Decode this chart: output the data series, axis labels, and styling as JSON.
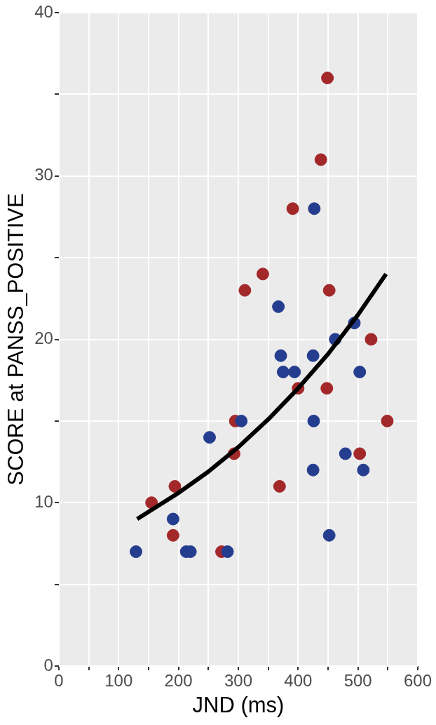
{
  "chart_data": {
    "type": "scatter",
    "xlabel": "JND (ms)",
    "ylabel": "SCORE at PANSS_POSITIVE",
    "xlim": [
      0,
      600
    ],
    "ylim": [
      0,
      40
    ],
    "xticks": [
      0,
      {
        "value": 50,
        "label": null
      },
      100,
      {
        "value": 150,
        "label": null
      },
      200,
      {
        "value": 250,
        "label": null
      },
      300,
      {
        "value": 350,
        "label": null
      },
      400,
      {
        "value": 450,
        "label": null
      },
      500,
      {
        "value": 550,
        "label": null
      },
      600
    ],
    "yticks": [
      0,
      {
        "value": 5,
        "label": null
      },
      10,
      {
        "value": 15,
        "label": null
      },
      20,
      {
        "value": 25,
        "label": null
      },
      30,
      {
        "value": 35,
        "label": null
      },
      40
    ],
    "grid": true,
    "legend": false,
    "marker": "circle",
    "series": [
      {
        "color": "#253d8f",
        "x": [
          129,
          191,
          213,
          220,
          282,
          425,
          452,
          479,
          509,
          252,
          305,
          367,
          371,
          375,
          394,
          425,
          426,
          462,
          494,
          503,
          427
        ],
        "values": [
          7,
          9,
          7,
          7,
          7,
          12,
          8,
          13,
          12,
          14,
          15,
          22,
          19,
          18,
          18,
          19,
          15,
          20,
          21,
          18,
          28
        ]
      },
      {
        "color": "#a3282a",
        "x": [
          191,
          155,
          194,
          272,
          369,
          503,
          293,
          295,
          311,
          341,
          400,
          452,
          448,
          522,
          549,
          449,
          438,
          391
        ],
        "values": [
          8,
          10,
          11,
          7,
          11,
          13,
          13,
          15,
          23,
          24,
          17,
          23,
          17,
          20,
          15,
          36,
          31,
          28
        ]
      },
      {
        "type": "line",
        "marker": "none",
        "line_style": "solid",
        "color": "#000000",
        "x": [
          131,
          200,
          250,
          300,
          350,
          400,
          450,
          500,
          547
        ],
        "values": [
          9,
          10.6,
          11.9,
          13.4,
          15.1,
          17,
          19.1,
          21.5,
          24
        ]
      }
    ]
  }
}
